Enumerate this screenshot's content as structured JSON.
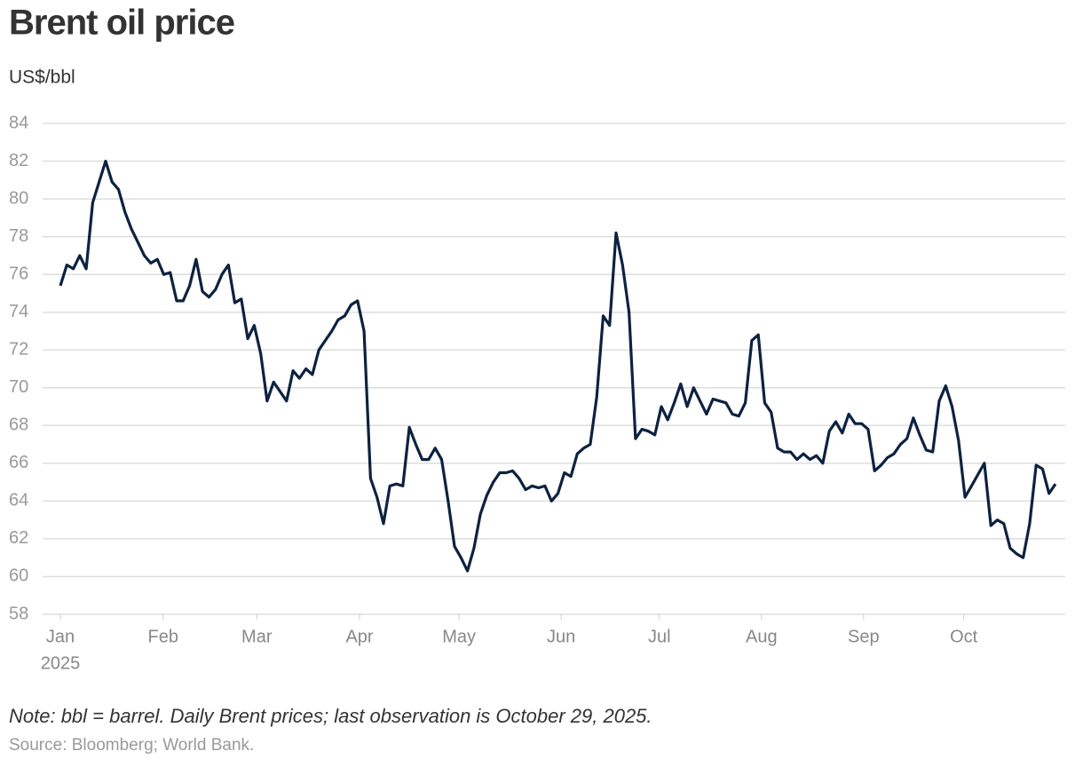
{
  "chart_data": {
    "type": "line",
    "title": "Brent oil price",
    "subtitle": "US$/bbl",
    "note": "Note: bbl = barrel. Daily Brent prices; last observation is October 29, 2025.",
    "source": "Source: Bloomberg; World Bank.",
    "xtick_sublabel": "2025",
    "xlim": [
      0,
      154
    ],
    "xticks": [
      {
        "value": 0,
        "label": "Jan"
      },
      {
        "value": 15.9,
        "label": "Feb"
      },
      {
        "value": 30.4,
        "label": "Mar"
      },
      {
        "value": 46.3,
        "label": "Apr"
      },
      {
        "value": 61.7,
        "label": "May"
      },
      {
        "value": 77.5,
        "label": "Jun"
      },
      {
        "value": 92.7,
        "label": "Jul"
      },
      {
        "value": 108.5,
        "label": "Aug"
      },
      {
        "value": 124.3,
        "label": "Sep"
      },
      {
        "value": 139.8,
        "label": "Oct"
      }
    ],
    "ylim": [
      58,
      84
    ],
    "yticks": [
      58,
      60,
      62,
      64,
      66,
      68,
      70,
      72,
      74,
      76,
      78,
      80,
      82,
      84
    ],
    "grid": true,
    "series": [
      {
        "name": "Brent",
        "color": "#0d2240",
        "values": [
          75.4,
          76.5,
          76.3,
          77.0,
          76.3,
          79.8,
          80.9,
          82.0,
          80.9,
          80.5,
          79.3,
          78.4,
          77.7,
          77.0,
          76.6,
          76.8,
          76.0,
          76.1,
          74.6,
          74.6,
          75.4,
          76.8,
          75.1,
          74.8,
          75.2,
          76.0,
          76.5,
          74.5,
          74.7,
          72.6,
          73.3,
          71.8,
          69.3,
          70.3,
          69.8,
          69.3,
          70.9,
          70.5,
          71.0,
          70.7,
          72.0,
          72.5,
          73.0,
          73.6,
          73.8,
          74.4,
          74.6,
          73.0,
          65.2,
          64.2,
          62.8,
          64.8,
          64.9,
          64.8,
          67.9,
          67.0,
          66.2,
          66.2,
          66.8,
          66.2,
          64.0,
          61.6,
          61.0,
          60.3,
          61.5,
          63.3,
          64.3,
          65.0,
          65.5,
          65.5,
          65.6,
          65.2,
          64.6,
          64.8,
          64.7,
          64.8,
          64.0,
          64.4,
          65.5,
          65.3,
          66.5,
          66.8,
          67.0,
          69.5,
          73.8,
          73.3,
          78.2,
          76.5,
          74.0,
          67.3,
          67.8,
          67.7,
          67.5,
          69.0,
          68.3,
          69.2,
          70.2,
          69.0,
          70.0,
          69.3,
          68.6,
          69.4,
          69.3,
          69.2,
          68.6,
          68.5,
          69.2,
          72.5,
          72.8,
          69.2,
          68.7,
          66.8,
          66.6,
          66.6,
          66.2,
          66.5,
          66.2,
          66.4,
          66.0,
          67.7,
          68.2,
          67.6,
          68.6,
          68.1,
          68.1,
          67.8,
          65.6,
          65.9,
          66.3,
          66.5,
          67.0,
          67.3,
          68.4,
          67.5,
          66.7,
          66.6,
          69.3,
          70.1,
          69.0,
          67.2,
          64.2,
          64.8,
          65.4,
          66.0,
          62.7,
          63.0,
          62.8,
          61.5,
          61.2,
          61.0,
          62.8,
          65.9,
          65.7,
          64.4,
          64.9
        ]
      }
    ]
  }
}
